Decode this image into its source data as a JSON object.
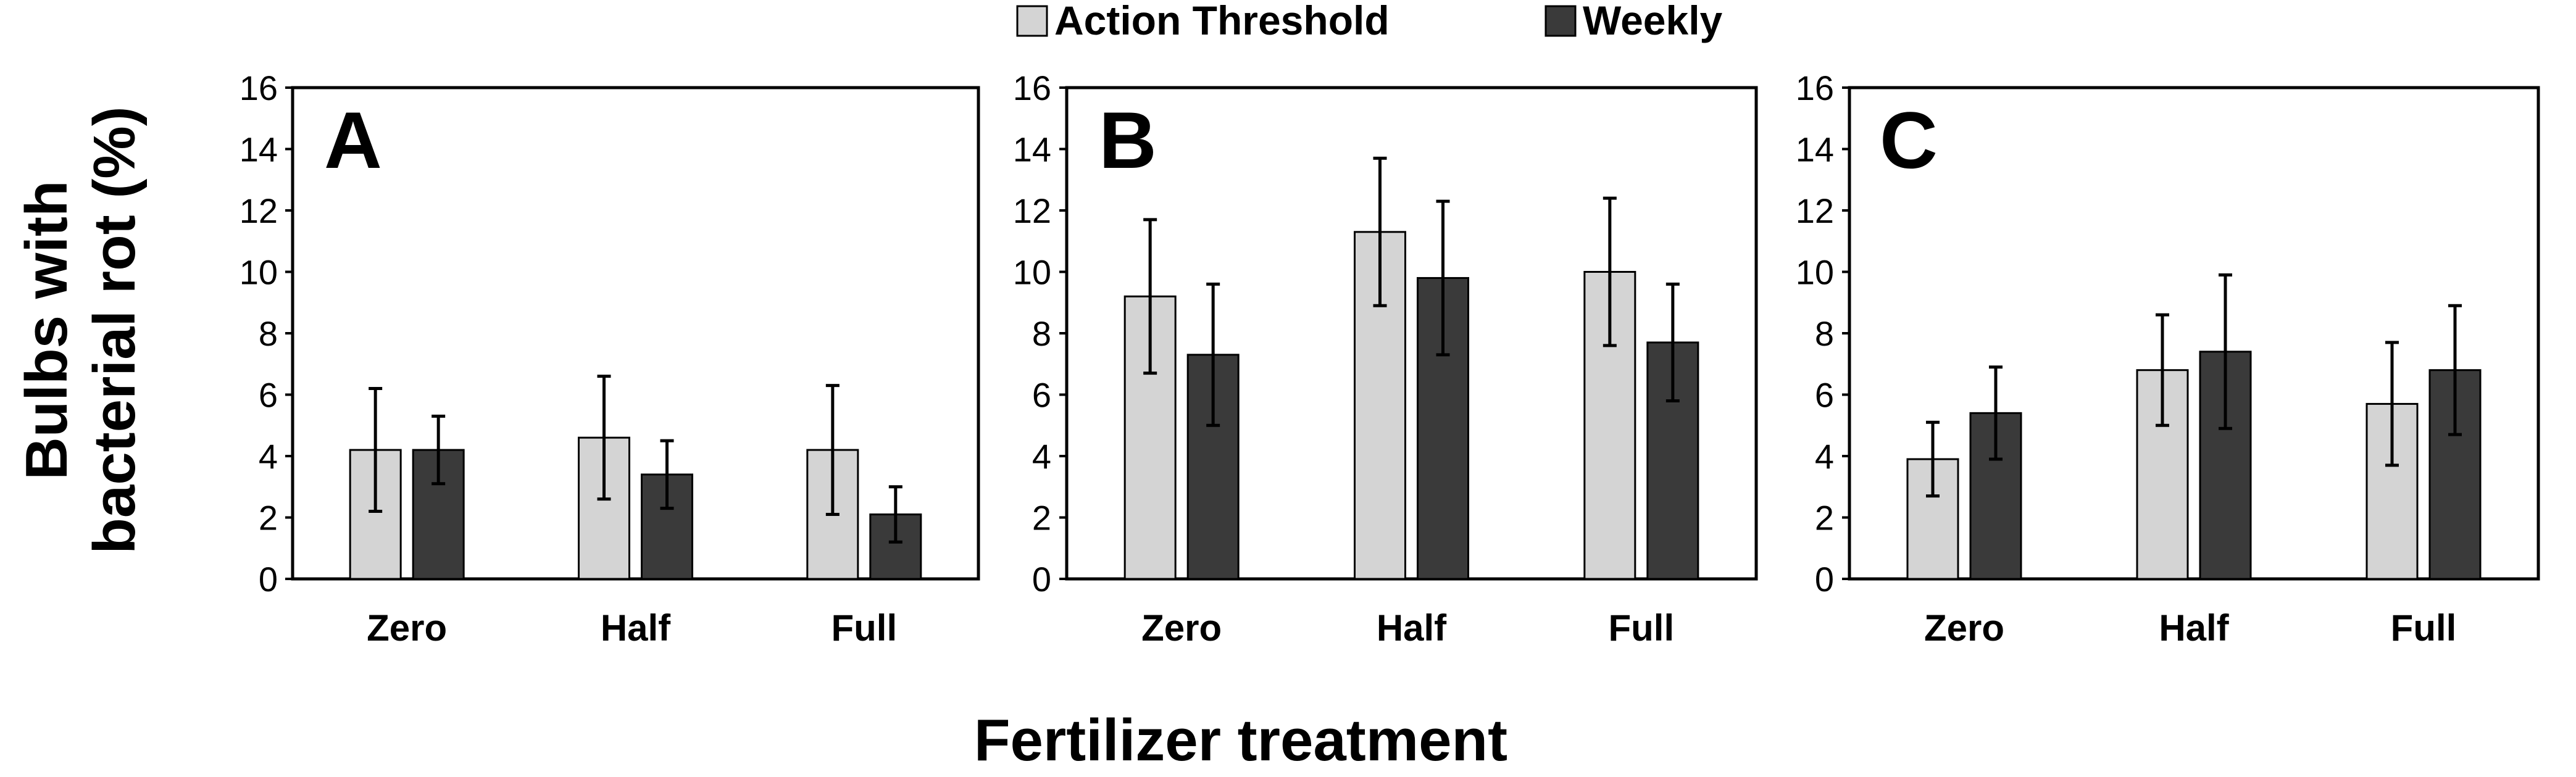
{
  "ylabel_lines": [
    "Bulbs with",
    "bacterial rot (%)"
  ],
  "xlabel": "Fertilizer treatment",
  "legend": [
    {
      "name": "Action Threshold",
      "color": "#d4d4d4"
    },
    {
      "name": "Weekly",
      "color": "#3a3a3a"
    }
  ],
  "chart_data": [
    {
      "type": "bar",
      "panel": "A",
      "categories": [
        "Zero",
        "Half",
        "Full"
      ],
      "ylim": [
        0,
        16
      ],
      "yticks": [
        "0",
        "2",
        "4",
        "6",
        "8",
        "10",
        "12",
        "14",
        "16"
      ],
      "series": [
        {
          "name": "Action Threshold",
          "color": "#d4d4d4",
          "values": [
            4.2,
            4.6,
            4.2
          ],
          "errors": [
            2.0,
            2.0,
            2.1
          ]
        },
        {
          "name": "Weekly",
          "color": "#3a3a3a",
          "values": [
            4.2,
            3.4,
            2.1
          ],
          "errors": [
            1.1,
            1.1,
            0.9
          ]
        }
      ]
    },
    {
      "type": "bar",
      "panel": "B",
      "categories": [
        "Zero",
        "Half",
        "Full"
      ],
      "ylim": [
        0,
        16
      ],
      "yticks": [
        "0",
        "2",
        "4",
        "6",
        "8",
        "10",
        "12",
        "14",
        "16"
      ],
      "series": [
        {
          "name": "Action Threshold",
          "color": "#d4d4d4",
          "values": [
            9.2,
            11.3,
            10.0
          ],
          "errors": [
            2.5,
            2.4,
            2.4
          ]
        },
        {
          "name": "Weekly",
          "color": "#3a3a3a",
          "values": [
            7.3,
            9.8,
            7.7
          ],
          "errors": [
            2.3,
            2.5,
            1.9
          ]
        }
      ]
    },
    {
      "type": "bar",
      "panel": "C",
      "categories": [
        "Zero",
        "Half",
        "Full"
      ],
      "ylim": [
        0,
        16
      ],
      "yticks": [
        "0",
        "2",
        "4",
        "6",
        "8",
        "10",
        "12",
        "14",
        "16"
      ],
      "series": [
        {
          "name": "Action Threshold",
          "color": "#d4d4d4",
          "values": [
            3.9,
            6.8,
            5.7
          ],
          "errors": [
            1.2,
            1.8,
            2.0
          ]
        },
        {
          "name": "Weekly",
          "color": "#3a3a3a",
          "values": [
            5.4,
            7.4,
            6.8
          ],
          "errors": [
            1.5,
            2.5,
            2.1
          ]
        }
      ]
    }
  ]
}
